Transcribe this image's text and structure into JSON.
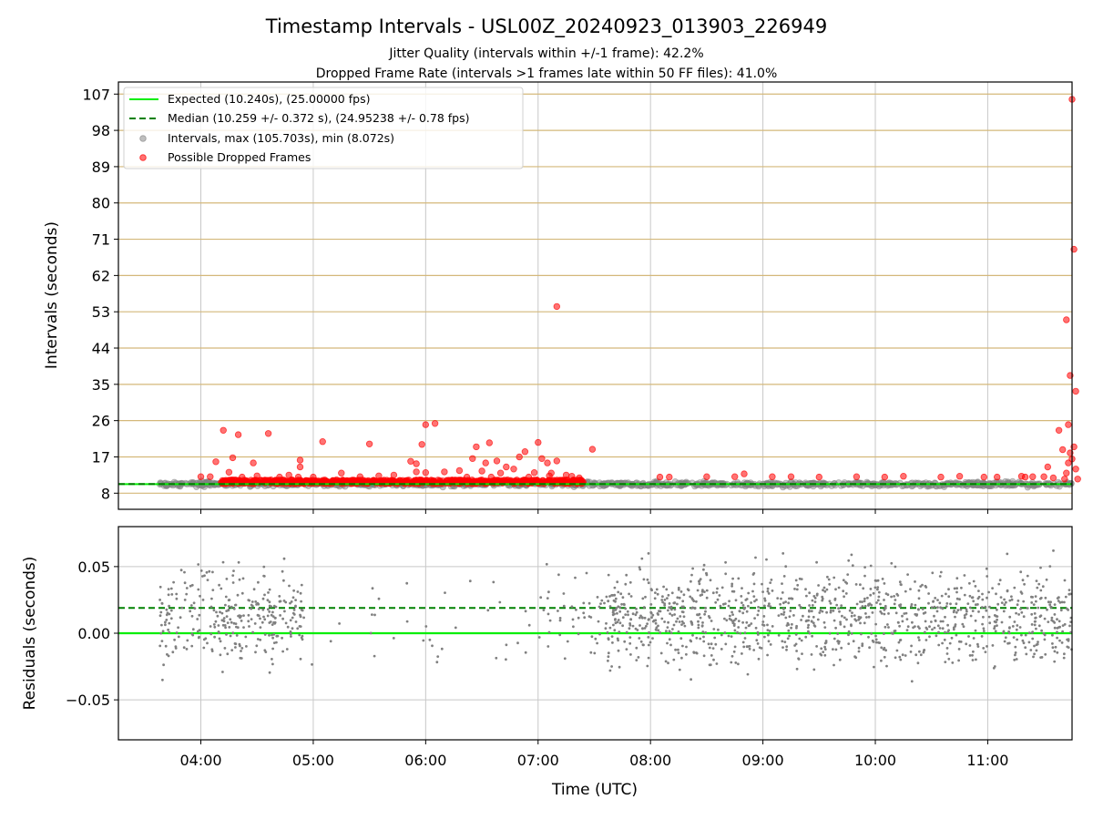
{
  "chart_data": [
    {
      "type": "scatter",
      "title": "Timestamp Intervals - USL00Z_20240923_013903_226949",
      "subtitle_lines": [
        "Jitter Quality (intervals within +/-1 frame): 42.2%",
        "Dropped Frame Rate (intervals >1 frames late within 50 FF files): 41.0%"
      ],
      "xlabel": "",
      "ylabel": "Intervals (seconds)",
      "ylim": [
        4,
        110
      ],
      "xlim": [
        "03:16",
        "11:45"
      ],
      "yticks": [
        8,
        17,
        26,
        35,
        44,
        53,
        62,
        71,
        80,
        89,
        98,
        107
      ],
      "grid": true,
      "legend_position": "top-left",
      "series": [
        {
          "name": "Expected (10.240s), (25.00000 fps)",
          "kind": "hline",
          "y": 10.24,
          "color": "#00ee00",
          "style": "solid"
        },
        {
          "name": "Median (10.259 +/- 0.372 s), (24.95238 +/- 0.78 fps)",
          "kind": "hline",
          "y": 10.259,
          "color": "#008000",
          "style": "dashed"
        },
        {
          "name": "Intervals, max (105.703s), min (8.072s)",
          "kind": "scatter",
          "color": "#808080",
          "ranges": [
            [
              "03:38",
              "11:45"
            ]
          ],
          "max": 105.703,
          "min": 8.072
        },
        {
          "name": "Possible Dropped Frames",
          "kind": "scatter",
          "color": "#ff0000",
          "dense_band": {
            "x_range": [
              "04:10",
              "07:25"
            ],
            "y_range": [
              10.4,
              11.3
            ]
          },
          "outliers": [
            {
              "x": "04:00",
              "y": 12.1
            },
            {
              "x": "04:05",
              "y": 12.1
            },
            {
              "x": "04:08",
              "y": 15.8
            },
            {
              "x": "04:12",
              "y": 23.6
            },
            {
              "x": "04:15",
              "y": 13.2
            },
            {
              "x": "04:17",
              "y": 16.8
            },
            {
              "x": "04:20",
              "y": 22.5
            },
            {
              "x": "04:22",
              "y": 12.0
            },
            {
              "x": "04:28",
              "y": 15.5
            },
            {
              "x": "04:30",
              "y": 12.3
            },
            {
              "x": "04:36",
              "y": 22.8
            },
            {
              "x": "04:42",
              "y": 12.0
            },
            {
              "x": "04:47",
              "y": 12.5
            },
            {
              "x": "04:52",
              "y": 12.0
            },
            {
              "x": "04:53",
              "y": 16.2
            },
            {
              "x": "04:53",
              "y": 14.5
            },
            {
              "x": "05:00",
              "y": 12.0
            },
            {
              "x": "05:05",
              "y": 20.8
            },
            {
              "x": "05:15",
              "y": 13.0
            },
            {
              "x": "05:25",
              "y": 12.1
            },
            {
              "x": "05:30",
              "y": 20.2
            },
            {
              "x": "05:35",
              "y": 12.3
            },
            {
              "x": "05:43",
              "y": 12.5
            },
            {
              "x": "05:52",
              "y": 15.9
            },
            {
              "x": "05:55",
              "y": 15.3
            },
            {
              "x": "05:55",
              "y": 13.3
            },
            {
              "x": "05:58",
              "y": 20.1
            },
            {
              "x": "06:00",
              "y": 13.1
            },
            {
              "x": "06:00",
              "y": 25.0
            },
            {
              "x": "06:05",
              "y": 25.3
            },
            {
              "x": "06:10",
              "y": 13.3
            },
            {
              "x": "06:18",
              "y": 13.6
            },
            {
              "x": "06:22",
              "y": 12.0
            },
            {
              "x": "06:25",
              "y": 16.6
            },
            {
              "x": "06:27",
              "y": 19.5
            },
            {
              "x": "06:30",
              "y": 13.5
            },
            {
              "x": "06:32",
              "y": 15.5
            },
            {
              "x": "06:34",
              "y": 20.5
            },
            {
              "x": "06:35",
              "y": 12.0
            },
            {
              "x": "06:38",
              "y": 16.0
            },
            {
              "x": "06:40",
              "y": 13.0
            },
            {
              "x": "06:43",
              "y": 14.5
            },
            {
              "x": "06:47",
              "y": 14.0
            },
            {
              "x": "06:50",
              "y": 17.0
            },
            {
              "x": "06:53",
              "y": 18.3
            },
            {
              "x": "06:55",
              "y": 12.0
            },
            {
              "x": "06:58",
              "y": 13.1
            },
            {
              "x": "07:00",
              "y": 20.6
            },
            {
              "x": "07:02",
              "y": 16.6
            },
            {
              "x": "07:05",
              "y": 15.5
            },
            {
              "x": "07:06",
              "y": 12.3
            },
            {
              "x": "07:07",
              "y": 13.0
            },
            {
              "x": "07:10",
              "y": 16.0
            },
            {
              "x": "07:10",
              "y": 54.3
            },
            {
              "x": "07:15",
              "y": 12.5
            },
            {
              "x": "07:18",
              "y": 12.2
            },
            {
              "x": "07:22",
              "y": 11.8
            },
            {
              "x": "07:29",
              "y": 18.9
            },
            {
              "x": "08:05",
              "y": 12.0
            },
            {
              "x": "08:10",
              "y": 12.0
            },
            {
              "x": "08:30",
              "y": 12.1
            },
            {
              "x": "08:45",
              "y": 12.1
            },
            {
              "x": "08:50",
              "y": 12.8
            },
            {
              "x": "09:05",
              "y": 12.1
            },
            {
              "x": "09:15",
              "y": 12.1
            },
            {
              "x": "09:30",
              "y": 12.0
            },
            {
              "x": "09:50",
              "y": 12.1
            },
            {
              "x": "10:05",
              "y": 12.0
            },
            {
              "x": "10:15",
              "y": 12.2
            },
            {
              "x": "10:35",
              "y": 12.0
            },
            {
              "x": "10:45",
              "y": 12.2
            },
            {
              "x": "10:58",
              "y": 12.0
            },
            {
              "x": "11:05",
              "y": 12.0
            },
            {
              "x": "11:18",
              "y": 12.2
            },
            {
              "x": "11:20",
              "y": 12.0
            },
            {
              "x": "11:24",
              "y": 12.1
            },
            {
              "x": "11:30",
              "y": 12.1
            },
            {
              "x": "11:32",
              "y": 14.5
            },
            {
              "x": "11:35",
              "y": 11.8
            },
            {
              "x": "11:38",
              "y": 23.6
            },
            {
              "x": "11:40",
              "y": 18.8
            },
            {
              "x": "11:41",
              "y": 11.5
            },
            {
              "x": "11:42",
              "y": 13.0
            },
            {
              "x": "11:42",
              "y": 51.0
            },
            {
              "x": "11:43",
              "y": 25.0
            },
            {
              "x": "11:43",
              "y": 15.5
            },
            {
              "x": "11:44",
              "y": 37.2
            },
            {
              "x": "11:44",
              "y": 18.0
            },
            {
              "x": "11:45",
              "y": 105.7
            },
            {
              "x": "11:45",
              "y": 16.5
            },
            {
              "x": "11:46",
              "y": 68.5
            },
            {
              "x": "11:46",
              "y": 19.5
            },
            {
              "x": "11:47",
              "y": 14.0
            },
            {
              "x": "11:47",
              "y": 33.3
            },
            {
              "x": "11:48",
              "y": 11.5
            }
          ]
        }
      ]
    },
    {
      "type": "scatter",
      "xlabel": "Time (UTC)",
      "ylabel": "Residuals (seconds)",
      "ylim": [
        -0.08,
        0.08
      ],
      "yticks": [
        -0.05,
        0.0,
        0.05
      ],
      "ytick_labels": [
        "−0.05",
        "0.00",
        "0.05"
      ],
      "xticks": [
        "04:00",
        "05:00",
        "06:00",
        "07:00",
        "08:00",
        "09:00",
        "10:00",
        "11:00"
      ],
      "xlim": [
        "03:16",
        "11:45"
      ],
      "grid": true,
      "series": [
        {
          "kind": "hline",
          "y": 0.0,
          "color": "#00ee00",
          "style": "solid"
        },
        {
          "kind": "hline",
          "y": 0.019,
          "color": "#008000",
          "style": "dashed"
        },
        {
          "kind": "scatter",
          "color": "#808080",
          "range": [
            -0.08,
            0.08
          ],
          "density_segments": [
            {
              "x_range": [
                "03:38",
                "04:55"
              ],
              "count": 300
            },
            {
              "x_range": [
                "04:55",
                "06:25"
              ],
              "count": 22
            },
            {
              "x_range": [
                "06:25",
                "07:05"
              ],
              "count": 14
            },
            {
              "x_range": [
                "07:05",
                "07:35"
              ],
              "count": 40
            },
            {
              "x_range": [
                "07:35",
                "11:45"
              ],
              "count": 1100
            }
          ]
        }
      ]
    }
  ],
  "colors": {
    "expected": "#00ee00",
    "median": "#008000",
    "intervals": "#808080",
    "dropped": "#ff0000",
    "hgrid_top": "#d4b87a",
    "grid": "#c8c8c8"
  }
}
